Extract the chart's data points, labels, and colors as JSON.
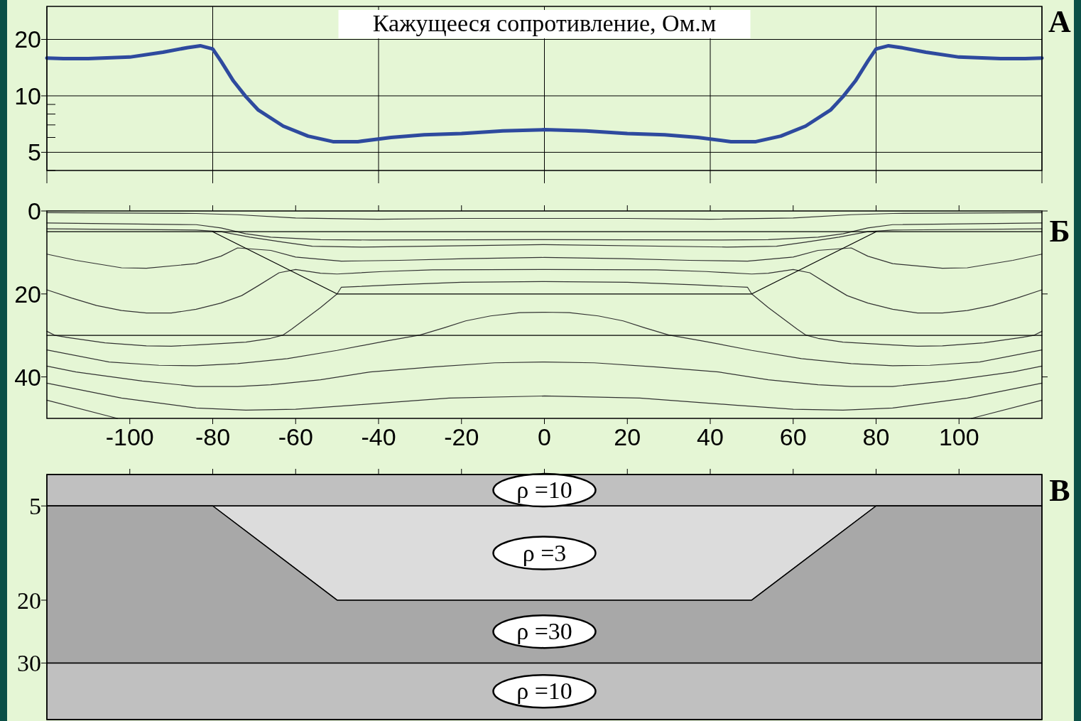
{
  "chart_data": [
    {
      "type": "line",
      "title": "Кажущееся сопротивление, Ом.м",
      "log": "y",
      "grid": true,
      "tick_labels": "y",
      "annotations": [
        "А"
      ],
      "x": [
        -120,
        -116,
        -110,
        -100,
        -92,
        -86,
        -83,
        -80,
        -78,
        -75,
        -72,
        -69,
        -63,
        -57,
        -51,
        -45,
        -37,
        -29,
        -20,
        -10,
        0,
        10,
        20,
        29,
        37,
        45,
        51,
        57,
        63,
        69,
        72,
        75,
        78,
        80,
        83,
        86,
        92,
        100,
        110,
        116,
        120
      ],
      "series": [
        {
          "color": "#2e4a9e",
          "values": [
            15.9,
            15.8,
            15.8,
            16.1,
            17.1,
            18.1,
            18.5,
            17.8,
            15.3,
            12.0,
            9.9,
            8.4,
            6.9,
            6.1,
            5.7,
            5.7,
            6.0,
            6.2,
            6.3,
            6.5,
            6.6,
            6.5,
            6.3,
            6.2,
            6.0,
            5.7,
            5.7,
            6.1,
            6.9,
            8.4,
            9.9,
            12.0,
            15.3,
            17.8,
            18.5,
            18.1,
            17.1,
            16.1,
            15.8,
            15.8,
            15.9
          ]
        }
      ],
      "xlim": [
        -120,
        120
      ],
      "xticks": [
        {
          "value": -120,
          "label": null
        },
        {
          "value": -80,
          "label": null
        },
        {
          "value": -40,
          "label": null
        },
        {
          "value": 0,
          "label": null
        },
        {
          "value": 40,
          "label": null
        },
        {
          "value": 80,
          "label": null
        },
        {
          "value": 120,
          "label": null
        }
      ],
      "ylim": [
        4,
        30
      ],
      "yticks": [
        {
          "value": 4,
          "label": null
        },
        5,
        {
          "value": 6,
          "label": null
        },
        {
          "value": 7,
          "label": null
        },
        {
          "value": 8,
          "label": null
        },
        {
          "value": 9,
          "label": null
        },
        10,
        20
      ]
    },
    {
      "type": "line",
      "annotations": [
        "Б"
      ],
      "xlim": [
        -120,
        120
      ],
      "xticks": [
        -100,
        -80,
        -60,
        -40,
        -20,
        0,
        20,
        40,
        60,
        80,
        100
      ],
      "ylim": [
        50,
        0
      ],
      "yticks": [
        0,
        20,
        40
      ],
      "series": [
        {
          "color": "#333333",
          "x": [
            -120,
            -84,
            -74,
            -60,
            -40,
            -20,
            0,
            20,
            40,
            60,
            74,
            84,
            120
          ],
          "values": [
            0.4,
            0.6,
            0.9,
            1.7,
            2.0,
            1.8,
            1.8,
            1.8,
            2.0,
            1.7,
            0.9,
            0.6,
            0.4
          ]
        },
        {
          "color": "#333333",
          "x": [
            -120,
            -84,
            -78,
            -72,
            -66,
            -54,
            -42,
            0,
            42,
            54,
            66,
            72,
            78,
            84,
            120
          ],
          "values": [
            2.9,
            3.3,
            4.1,
            5.5,
            6.3,
            6.9,
            7.0,
            6.9,
            7.0,
            6.9,
            6.3,
            5.5,
            4.1,
            3.3,
            2.9
          ]
        },
        {
          "color": "#333333",
          "x": [
            -120,
            -84,
            -78,
            -71,
            -63,
            -56,
            -44,
            0,
            44,
            56,
            63,
            71,
            78,
            84,
            120
          ],
          "values": [
            4.3,
            4.6,
            5.0,
            6.3,
            7.5,
            8.5,
            8.7,
            8.1,
            8.7,
            8.5,
            7.5,
            6.3,
            5.0,
            4.6,
            4.3
          ]
        },
        {
          "color": "#333333",
          "x": [
            -120,
            -113,
            -102,
            -96,
            -84,
            -78,
            -74,
            -66,
            -60,
            -49,
            -35,
            -19,
            0,
            19,
            35,
            49,
            60,
            66,
            74,
            78,
            84,
            96,
            102,
            113,
            120
          ],
          "values": [
            10.4,
            11.9,
            13.7,
            13.8,
            12.7,
            10.9,
            8.9,
            9.5,
            11.1,
            12.1,
            11.9,
            11.5,
            11.2,
            11.5,
            11.9,
            12.1,
            11.1,
            9.5,
            8.9,
            10.9,
            12.7,
            13.8,
            13.7,
            11.9,
            10.4
          ]
        },
        {
          "color": "#333333",
          "x": [
            -120,
            -114,
            -108,
            -102,
            -96,
            -90,
            -84,
            -78,
            -73,
            -69,
            -64,
            -60,
            -54,
            -50,
            -39,
            -27,
            0,
            27,
            39,
            50,
            54,
            60,
            64,
            69,
            73,
            78,
            84,
            90,
            96,
            102,
            108,
            114,
            120
          ],
          "values": [
            19.0,
            21.0,
            22.8,
            24.0,
            24.6,
            24.6,
            23.7,
            22.2,
            20.4,
            18.0,
            14.9,
            14.1,
            15.0,
            15.2,
            14.6,
            14.2,
            14.1,
            14.2,
            14.6,
            15.2,
            15.0,
            14.1,
            14.9,
            18.0,
            20.4,
            22.2,
            23.7,
            24.6,
            24.6,
            24.0,
            22.8,
            21.0,
            19.0
          ]
        },
        {
          "color": "#333333",
          "x": [
            -120,
            -118,
            -115,
            -106,
            -96,
            -90,
            -84,
            -72,
            -66,
            -63,
            -61,
            -54,
            -50,
            -49,
            -36,
            -20,
            0,
            20,
            36,
            49,
            50,
            54,
            61,
            63,
            66,
            72,
            84,
            90,
            96,
            106,
            115,
            118,
            120
          ],
          "values": [
            29.0,
            30.0,
            30.5,
            31.8,
            32.5,
            32.6,
            32.3,
            31.6,
            30.7,
            29.9,
            28.5,
            23.3,
            20.0,
            18.4,
            17.8,
            17.2,
            17.0,
            17.2,
            17.8,
            18.4,
            20.0,
            23.3,
            28.5,
            29.9,
            30.7,
            31.6,
            32.3,
            32.6,
            32.5,
            31.8,
            30.5,
            30.0,
            29.0
          ]
        },
        {
          "color": "#333333",
          "x": [
            -120,
            -105,
            -93,
            -84,
            -74,
            -62,
            -50,
            -38,
            -30,
            -24,
            -19,
            -13,
            -6,
            0,
            6,
            13,
            19,
            24,
            30,
            38,
            50,
            62,
            74,
            84,
            93,
            105,
            120
          ],
          "values": [
            33.5,
            36.4,
            37.2,
            37.3,
            36.8,
            35.6,
            33.6,
            31.3,
            29.9,
            28.1,
            26.5,
            25.3,
            24.5,
            24.4,
            24.5,
            25.3,
            26.5,
            28.1,
            29.9,
            31.3,
            33.6,
            35.6,
            36.8,
            37.3,
            37.2,
            36.4,
            33.5
          ]
        },
        {
          "color": "#333333",
          "x": [
            -120,
            -113,
            -97,
            -84,
            -74,
            -66,
            -54,
            -42,
            -27,
            -12,
            0,
            12,
            27,
            42,
            54,
            66,
            74,
            84,
            97,
            113,
            120
          ],
          "values": [
            37.4,
            38.8,
            41.0,
            42.3,
            42.3,
            41.9,
            40.7,
            38.8,
            37.6,
            36.6,
            36.4,
            36.6,
            37.6,
            38.8,
            40.7,
            41.9,
            42.3,
            42.3,
            41.0,
            38.8,
            37.4
          ]
        },
        {
          "color": "#333333",
          "x": [
            -120,
            -102,
            -84,
            -72,
            -60,
            -46,
            -23,
            0,
            23,
            46,
            60,
            72,
            84,
            102,
            120
          ],
          "values": [
            41.5,
            45.1,
            47.5,
            48.0,
            47.8,
            46.8,
            45.1,
            44.6,
            45.1,
            46.8,
            47.8,
            48.0,
            47.5,
            45.1,
            41.5
          ]
        },
        {
          "color": "#333333",
          "x": [
            -120,
            -103
          ],
          "values": [
            45.6,
            50
          ]
        },
        {
          "color": "#333333",
          "x": [
            103,
            120
          ],
          "values": [
            50,
            45.6
          ]
        },
        {
          "color": "#000000",
          "x": [
            -120,
            120
          ],
          "values": [
            5,
            5
          ]
        },
        {
          "color": "#000000",
          "x": [
            -80,
            -50,
            50,
            80
          ],
          "values": [
            5,
            20,
            20,
            5
          ]
        },
        {
          "color": "#000000",
          "x": [
            -120,
            120
          ],
          "values": [
            30,
            30
          ]
        }
      ]
    },
    {
      "type": "area",
      "stacked": true,
      "annotations": [
        "В"
      ],
      "tick_labels": "y",
      "xlim": [
        -120,
        120
      ],
      "ylim": [
        39,
        0
      ],
      "yticks": [
        5,
        20,
        30
      ],
      "xticks": [
        {
          "value": -100,
          "label": null
        },
        {
          "value": -80,
          "label": null
        },
        {
          "value": -60,
          "label": null
        },
        {
          "value": -40,
          "label": null
        },
        {
          "value": -20,
          "label": null
        },
        {
          "value": 0,
          "label": null
        },
        {
          "value": 20,
          "label": null
        },
        {
          "value": 40,
          "label": null
        },
        {
          "value": 60,
          "label": null
        },
        {
          "value": 80,
          "label": null
        },
        {
          "value": 100,
          "label": null
        }
      ],
      "x": [
        -120,
        -80,
        -50,
        50,
        80,
        120
      ],
      "series": [
        {
          "name": "ρ =10",
          "color": "#c0c0c0",
          "values": [
            5,
            5,
            5,
            5,
            5,
            5
          ]
        },
        {
          "name": "ρ =3",
          "color": "#dcdcdc",
          "values": [
            0,
            0,
            15,
            15,
            0,
            0
          ]
        },
        {
          "name": "ρ =30",
          "color": "#a8a8a8",
          "values": [
            25,
            25,
            10,
            10,
            25,
            25
          ]
        },
        {
          "name": "ρ =10",
          "color": "#c0c0c0",
          "values": [
            9,
            9,
            9,
            9,
            9,
            9
          ]
        }
      ]
    }
  ]
}
